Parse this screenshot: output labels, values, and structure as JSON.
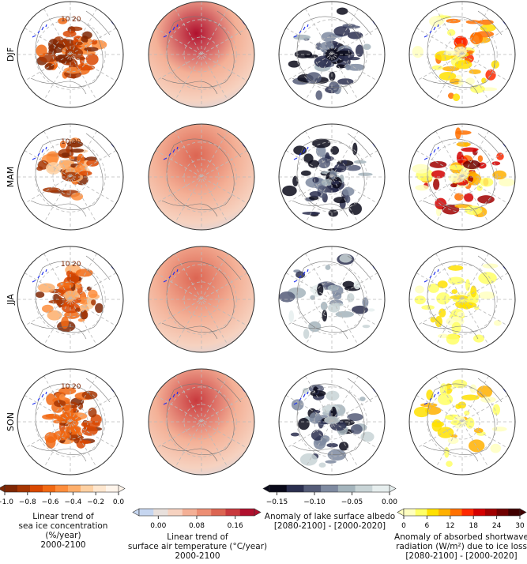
{
  "chart_data": {
    "type": "heatmap",
    "rows": [
      "DJF",
      "MAM",
      "JJA",
      "SON"
    ],
    "panels": [
      {
        "id": "sea-ice",
        "contour_labels": [
          "10",
          "20"
        ],
        "colormap": [
          "#7f2704",
          "#a63603",
          "#d94801",
          "#f16913",
          "#fd8d3c",
          "#fdae6b",
          "#fdd0a2",
          "#fee6ce",
          "#fff5eb"
        ],
        "intensity": [
          0.9,
          0.6,
          0.7,
          1.0
        ]
      },
      {
        "id": "air-temp",
        "colormap": [
          "#c6d6f0",
          "#e8e0dc",
          "#f6d2c0",
          "#f4b096",
          "#ec8e74",
          "#dc6552",
          "#c8393d",
          "#b0102e"
        ],
        "intensity": [
          0.9,
          0.5,
          0.55,
          0.7
        ]
      },
      {
        "id": "albedo",
        "colormap": [
          "#0a0a1a",
          "#2b2f4f",
          "#555c78",
          "#7e8aa0",
          "#a4b4bc",
          "#c8d4d6",
          "#e6eeee"
        ],
        "intensity": [
          0.8,
          0.7,
          0.2,
          0.5
        ]
      },
      {
        "id": "shortwave",
        "colormap": [
          "#ffffc0",
          "#ffff66",
          "#ffe000",
          "#ffb000",
          "#ff7000",
          "#ff2800",
          "#d40000",
          "#a00000",
          "#700000",
          "#400000"
        ],
        "intensity": [
          0.6,
          0.85,
          0.3,
          0.35
        ]
      }
    ],
    "colorbars": [
      {
        "id": "sea-ice",
        "ticks": [
          "−1.0",
          "−0.8",
          "−0.6",
          "−0.4",
          "−0.2",
          "0.0"
        ],
        "range": [
          -1.0,
          0.0
        ],
        "extend": "both",
        "label": [
          "Linear trend of",
          "sea ice concentration (%/year)",
          "2000-2100"
        ]
      },
      {
        "id": "air-temp",
        "ticks": [
          "0.00",
          "0.08",
          "0.16"
        ],
        "range": [
          -0.04,
          0.2
        ],
        "extend": "both",
        "label": [
          "Linear trend of",
          "surface air temperature (°C/year)",
          "2000-2100"
        ]
      },
      {
        "id": "albedo",
        "ticks": [
          "−0.15",
          "−0.10",
          "−0.05",
          "0.00"
        ],
        "range": [
          -0.16,
          0.0
        ],
        "extend": "both",
        "label": [
          "Anomaly of lake surface albedo",
          "[2080-2100] - [2000-2020]"
        ]
      },
      {
        "id": "shortwave",
        "ticks": [
          "0",
          "6",
          "12",
          "18",
          "24",
          "30"
        ],
        "range": [
          0,
          30
        ],
        "extend": "both",
        "label": [
          "Anomaly of absorbed shortwave",
          "radiation (W/m²) due to ice loss",
          "[2080-2100] - [2000-2020]"
        ]
      }
    ]
  }
}
